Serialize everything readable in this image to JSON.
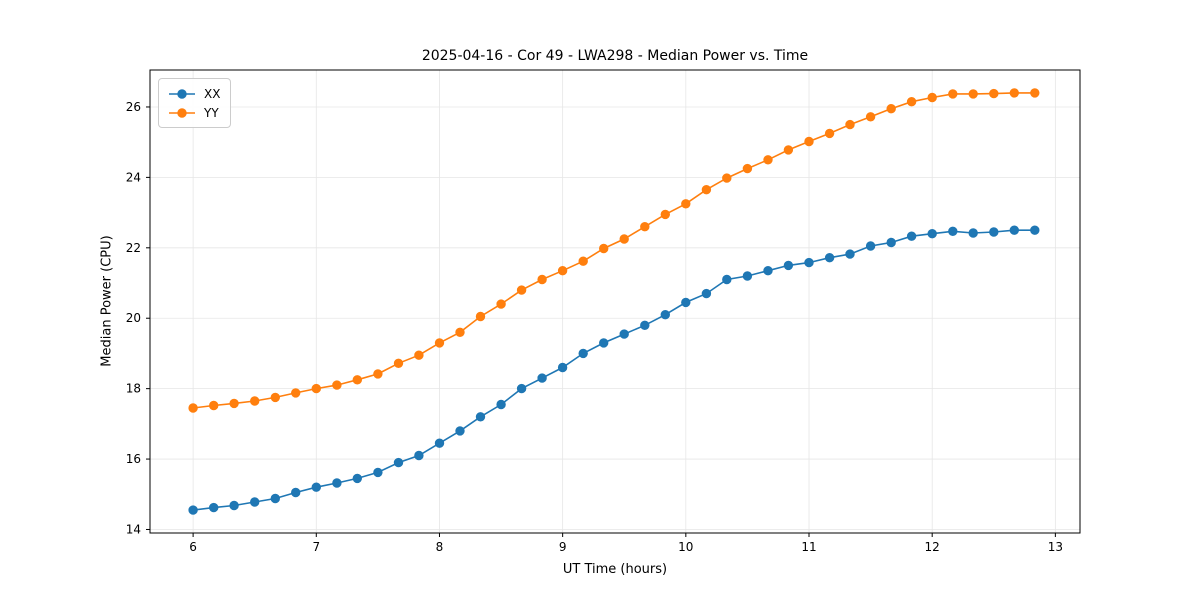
{
  "chart_data": {
    "type": "line",
    "title": "2025-04-16 - Cor 49 - LWA298 - Median Power vs. Time",
    "xlabel": "UT Time (hours)",
    "ylabel": "Median Power (CPU)",
    "xlim": [
      5.65,
      13.2
    ],
    "ylim": [
      13.9,
      27.05
    ],
    "xticks": [
      6,
      7,
      8,
      9,
      10,
      11,
      12,
      13
    ],
    "yticks": [
      14,
      16,
      18,
      20,
      22,
      24,
      26
    ],
    "grid": true,
    "legend_position": "upper left",
    "grid_color": "#e6e6e6",
    "axes_color": "#000000",
    "x": [
      6.0,
      6.167,
      6.333,
      6.5,
      6.667,
      6.833,
      7.0,
      7.167,
      7.333,
      7.5,
      7.667,
      7.833,
      8.0,
      8.167,
      8.333,
      8.5,
      8.667,
      8.833,
      9.0,
      9.167,
      9.333,
      9.5,
      9.667,
      9.833,
      10.0,
      10.167,
      10.333,
      10.5,
      10.667,
      10.833,
      11.0,
      11.167,
      11.333,
      11.5,
      11.667,
      11.833,
      12.0,
      12.167,
      12.333,
      12.5,
      12.667,
      12.833
    ],
    "series": [
      {
        "name": "XX",
        "color": "#1f77b4",
        "marker": "circle",
        "values": [
          14.55,
          14.62,
          14.68,
          14.78,
          14.88,
          15.05,
          15.2,
          15.32,
          15.45,
          15.62,
          15.9,
          16.1,
          16.45,
          16.8,
          17.2,
          17.55,
          18.0,
          18.3,
          18.6,
          19.0,
          19.3,
          19.55,
          19.8,
          20.1,
          20.45,
          20.7,
          21.1,
          21.2,
          21.35,
          21.5,
          21.58,
          21.72,
          21.82,
          22.05,
          22.15,
          22.33,
          22.4,
          22.47,
          22.42,
          22.45,
          22.5,
          22.5
        ]
      },
      {
        "name": "YY",
        "color": "#ff7f0e",
        "marker": "circle",
        "values": [
          17.45,
          17.52,
          17.58,
          17.65,
          17.75,
          17.88,
          18.0,
          18.1,
          18.25,
          18.42,
          18.72,
          18.95,
          19.3,
          19.6,
          20.05,
          20.4,
          20.8,
          21.1,
          21.35,
          21.62,
          21.98,
          22.25,
          22.6,
          22.95,
          23.25,
          23.65,
          23.98,
          24.25,
          24.5,
          24.78,
          25.02,
          25.25,
          25.5,
          25.72,
          25.95,
          26.15,
          26.27,
          26.37,
          26.37,
          26.38,
          26.4,
          26.4
        ]
      }
    ]
  }
}
